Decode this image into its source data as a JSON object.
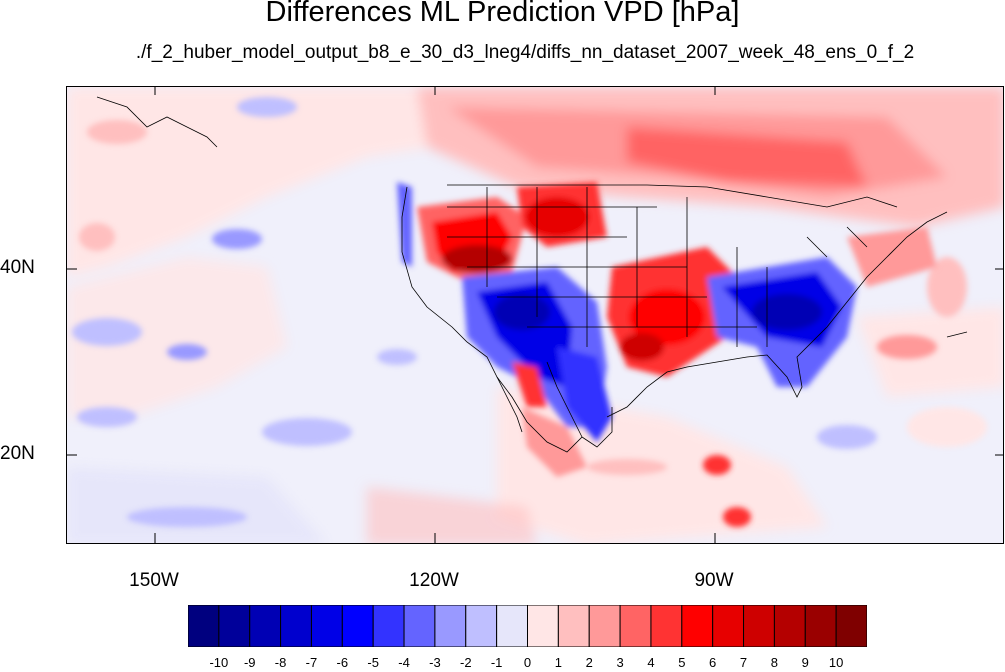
{
  "title": "Differences ML Prediction VPD [hPa]",
  "subtitle": "./f_2_huber_model_output_b8_e_30_d3_lneg4/diffs_nn_dataset_2007_week_48_ens_0_f_2",
  "x_axis_labels": [
    "150W",
    "120W",
    "90W"
  ],
  "y_axis_labels": [
    "40N",
    "20N"
  ],
  "colorbar": {
    "labels": [
      "-10",
      "-9",
      "-8",
      "-7",
      "-6",
      "-5",
      "-4",
      "-3",
      "-2",
      "-1",
      "0",
      "1",
      "2",
      "3",
      "4",
      "5",
      "6",
      "7",
      "8",
      "9",
      "10"
    ],
    "colors": [
      "#00007f",
      "#00009a",
      "#0000b4",
      "#0000ce",
      "#0000e7",
      "#0000ff",
      "#3333ff",
      "#6464ff",
      "#9999ff",
      "#bfbfff",
      "#e6e6fa",
      "#ffe6e6",
      "#ffbfbf",
      "#ff9999",
      "#ff6464",
      "#ff3333",
      "#ff0000",
      "#e70000",
      "#ce0000",
      "#b40000",
      "#9a0000",
      "#7f0000"
    ]
  }
}
